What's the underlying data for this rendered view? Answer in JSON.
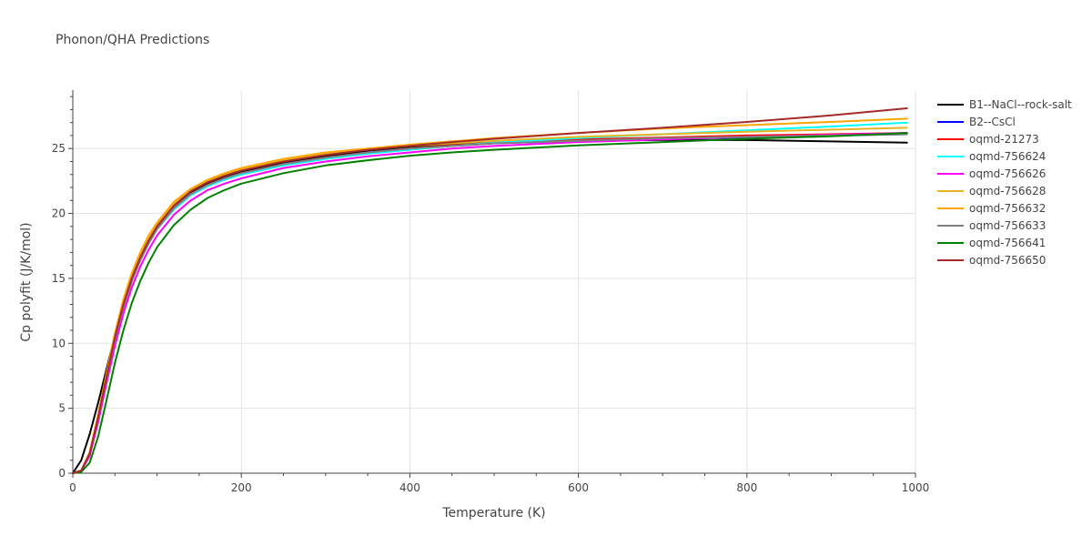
{
  "chart_data": {
    "type": "line",
    "title": "Phonon/QHA Predictions",
    "xlabel": "Temperature (K)",
    "ylabel": "Cp polyfit (J/K/mol)",
    "xlim": [
      0,
      1000
    ],
    "ylim": [
      0,
      29.5
    ],
    "x_ticks": [
      0,
      200,
      400,
      600,
      800,
      1000
    ],
    "y_ticks": [
      0,
      5,
      10,
      15,
      20,
      25
    ],
    "grid": true,
    "legend_position": "right",
    "x": [
      0,
      10,
      20,
      30,
      40,
      50,
      60,
      70,
      80,
      90,
      100,
      120,
      140,
      160,
      180,
      200,
      250,
      300,
      350,
      400,
      450,
      500,
      600,
      700,
      800,
      900,
      990
    ],
    "series": [
      {
        "name": "B1--NaCl--rock-salt",
        "color": "#000000",
        "values": [
          0,
          1.0,
          3.0,
          5.4,
          8.0,
          10.6,
          13.0,
          15.0,
          16.6,
          17.9,
          19.0,
          20.6,
          21.6,
          22.3,
          22.8,
          23.2,
          23.9,
          24.4,
          24.8,
          25.1,
          25.3,
          25.45,
          25.6,
          25.65,
          25.65,
          25.55,
          25.45
        ]
      },
      {
        "name": "B2--CsCl",
        "color": "#0000ff",
        "values": [
          0,
          0.2,
          1.5,
          4.2,
          7.3,
          10.3,
          12.8,
          14.8,
          16.4,
          17.7,
          18.8,
          20.4,
          21.5,
          22.2,
          22.7,
          23.1,
          23.8,
          24.3,
          24.7,
          25.0,
          25.2,
          25.4,
          25.6,
          25.75,
          25.85,
          26.0,
          26.1
        ]
      },
      {
        "name": "oqmd-21273",
        "color": "#ff0000",
        "values": [
          0,
          0.2,
          1.5,
          4.2,
          7.3,
          10.3,
          12.8,
          14.8,
          16.4,
          17.7,
          18.8,
          20.4,
          21.5,
          22.2,
          22.7,
          23.1,
          23.8,
          24.3,
          24.7,
          25.0,
          25.25,
          25.45,
          25.7,
          25.85,
          26.0,
          26.1,
          26.2
        ]
      },
      {
        "name": "oqmd-756624",
        "color": "#00ffff",
        "values": [
          0,
          0.2,
          1.5,
          4.2,
          7.3,
          10.3,
          12.8,
          14.8,
          16.4,
          17.7,
          18.8,
          20.3,
          21.4,
          22.1,
          22.6,
          23.0,
          23.7,
          24.2,
          24.6,
          24.9,
          25.2,
          25.45,
          25.8,
          26.1,
          26.4,
          26.7,
          27.0
        ]
      },
      {
        "name": "oqmd-756626",
        "color": "#ff00ff",
        "values": [
          0,
          0.2,
          1.3,
          3.9,
          6.9,
          9.8,
          12.3,
          14.3,
          15.9,
          17.2,
          18.3,
          19.9,
          21.0,
          21.8,
          22.3,
          22.7,
          23.5,
          24.0,
          24.4,
          24.7,
          25.0,
          25.2,
          25.5,
          25.7,
          25.9,
          26.05,
          26.2
        ]
      },
      {
        "name": "oqmd-756628",
        "color": "#e6b422",
        "values": [
          0,
          0.2,
          1.6,
          4.4,
          7.6,
          10.7,
          13.3,
          15.3,
          16.9,
          18.2,
          19.2,
          20.8,
          21.8,
          22.5,
          23.0,
          23.4,
          24.1,
          24.6,
          24.9,
          25.2,
          25.4,
          25.6,
          25.9,
          26.1,
          26.3,
          26.45,
          26.6
        ]
      },
      {
        "name": "oqmd-756632",
        "color": "#ffa500",
        "values": [
          0,
          0.2,
          1.6,
          4.5,
          7.7,
          10.8,
          13.4,
          15.4,
          17.0,
          18.3,
          19.3,
          20.9,
          21.9,
          22.6,
          23.1,
          23.5,
          24.2,
          24.7,
          25.0,
          25.3,
          25.55,
          25.8,
          26.2,
          26.55,
          26.8,
          27.05,
          27.3
        ]
      },
      {
        "name": "oqmd-756633",
        "color": "#808080",
        "values": [
          0,
          0.2,
          1.5,
          4.2,
          7.3,
          10.3,
          12.8,
          14.8,
          16.4,
          17.7,
          18.8,
          20.4,
          21.5,
          22.2,
          22.7,
          23.1,
          23.8,
          24.3,
          24.7,
          25.0,
          25.2,
          25.4,
          25.6,
          25.8,
          25.9,
          26.0,
          26.1
        ]
      },
      {
        "name": "oqmd-756641",
        "color": "#008000",
        "values": [
          0,
          0.1,
          0.8,
          2.8,
          5.6,
          8.5,
          11.0,
          13.1,
          14.8,
          16.2,
          17.4,
          19.1,
          20.3,
          21.2,
          21.8,
          22.3,
          23.1,
          23.7,
          24.1,
          24.45,
          24.7,
          24.9,
          25.25,
          25.5,
          25.75,
          25.95,
          26.2
        ]
      },
      {
        "name": "oqmd-756650",
        "color": "#a52a2a",
        "values": [
          0,
          0.2,
          1.5,
          4.3,
          7.4,
          10.5,
          13.0,
          15.0,
          16.6,
          17.9,
          19.0,
          20.6,
          21.7,
          22.4,
          22.9,
          23.3,
          24.0,
          24.5,
          24.9,
          25.2,
          25.5,
          25.75,
          26.2,
          26.6,
          27.05,
          27.55,
          28.1
        ]
      }
    ]
  }
}
